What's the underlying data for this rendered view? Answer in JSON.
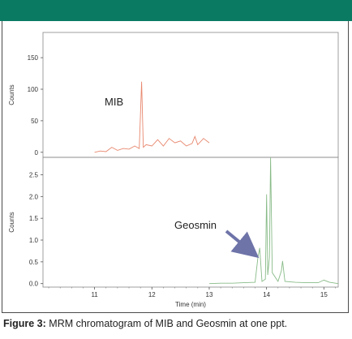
{
  "header": {
    "color": "#0a7a63"
  },
  "caption": {
    "figure_label": "Figure 3:",
    "text": "MRM chromatogram of MIB and Geosmin at one ppt."
  },
  "chart_data": [
    {
      "type": "line",
      "name": "mib-panel",
      "annotation": "MIB",
      "ylabel": "Counts",
      "xlabel": "",
      "xlim": [
        10.1,
        15.25
      ],
      "ylim": [
        -8,
        190
      ],
      "yticks": [
        0,
        50,
        100,
        150
      ],
      "color": "#e8876e",
      "series": [
        {
          "x": [
            11.0,
            11.1,
            11.2,
            11.3,
            11.4,
            11.5,
            11.6,
            11.7,
            11.78,
            11.82,
            11.85,
            11.9,
            12.0,
            12.1,
            12.2,
            12.3,
            12.4,
            12.5,
            12.6,
            12.7,
            12.75,
            12.8,
            12.9,
            13.0
          ],
          "y": [
            0,
            2,
            1,
            8,
            3,
            6,
            5,
            10,
            6,
            112,
            8,
            12,
            10,
            20,
            10,
            22,
            15,
            18,
            10,
            14,
            25,
            12,
            22,
            15
          ]
        }
      ]
    },
    {
      "type": "line",
      "name": "geosmin-panel",
      "annotation": "Geosmin",
      "ylabel": "Counts",
      "xlabel": "Time (min)",
      "xlim": [
        10.1,
        15.25
      ],
      "ylim": [
        -0.08,
        2.9
      ],
      "yticks": [
        0.0,
        0.5,
        1.0,
        1.5,
        2.0,
        2.5
      ],
      "xticks": [
        11,
        12,
        13,
        14,
        15
      ],
      "color": "#88bb88",
      "series": [
        {
          "x": [
            13.0,
            13.2,
            13.4,
            13.6,
            13.8,
            13.85,
            13.88,
            13.92,
            13.98,
            14.0,
            14.02,
            14.05,
            14.07,
            14.1,
            14.2,
            14.26,
            14.28,
            14.32,
            14.5,
            14.7,
            14.9,
            15.0,
            15.1,
            15.25
          ],
          "y": [
            0.0,
            0.01,
            0.01,
            0.02,
            0.03,
            0.6,
            0.82,
            0.05,
            0.1,
            2.05,
            0.2,
            0.6,
            2.9,
            0.25,
            0.05,
            0.3,
            0.52,
            0.05,
            0.03,
            0.02,
            0.02,
            0.08,
            0.03,
            0.0
          ]
        }
      ]
    }
  ]
}
